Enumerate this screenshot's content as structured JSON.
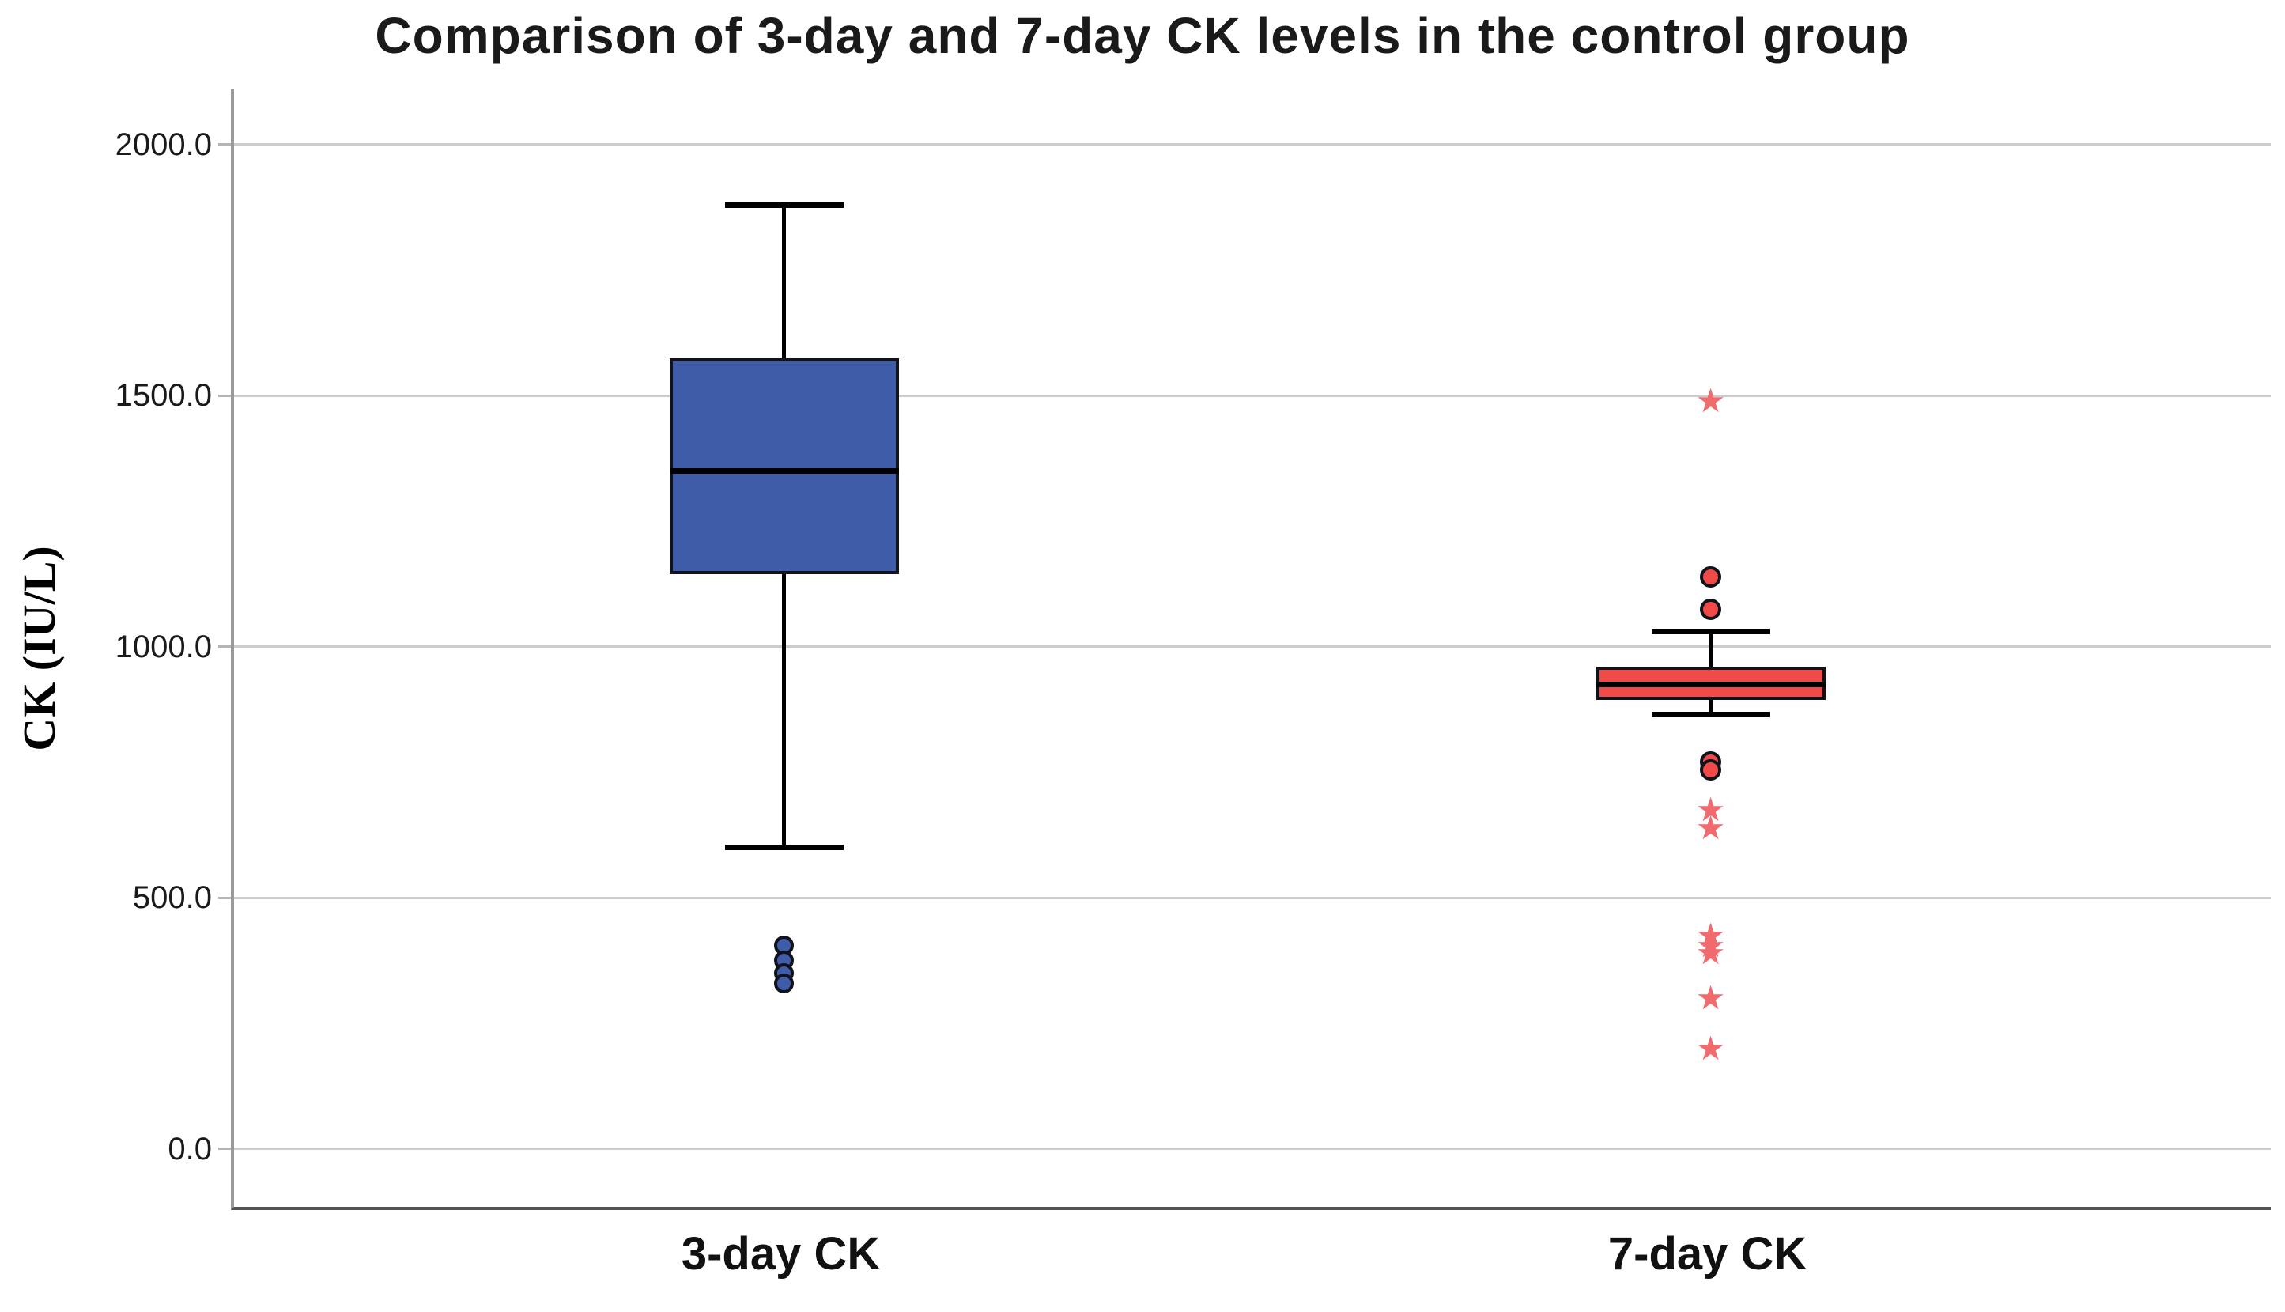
{
  "title": "Comparison of 3-day and 7-day CK levels in the control group",
  "colors": {
    "box_blue": "#3F5CA8",
    "box_red": "#EF4A47",
    "star_red": "#F16A6D",
    "outline_black": "#10131c",
    "gridline_gray": "#cccccc",
    "y_axis_gray": "#9a9a9a",
    "x_axis_dark": "#545454"
  },
  "chart_data": {
    "type": "boxplot",
    "title": "Comparison of 3-day and 7-day CK levels in the control group",
    "xlabel": "",
    "ylabel": "CK (IU/L)",
    "ylim": [
      -115,
      2110
    ],
    "yticks": [
      0,
      500,
      1000,
      1500,
      2000
    ],
    "ytick_labels": [
      "0.0",
      "500.0",
      "1000.0",
      "1500.0",
      "2000.0"
    ],
    "grid": "horizontal",
    "legend": "none",
    "categories": [
      "3-day CK",
      "7-day CK"
    ],
    "series": [
      {
        "name": "3-day CK",
        "box_color": "#3F5CA8",
        "whisker_low": 600,
        "q1": 1145,
        "median": 1350,
        "q3": 1575,
        "whisker_high": 1880,
        "outliers": {
          "circles": [
            405,
            375,
            350,
            330
          ],
          "stars": []
        }
      },
      {
        "name": "7-day CK",
        "box_color": "#EF4A47",
        "whisker_low": 865,
        "q1": 895,
        "median": 925,
        "q3": 960,
        "whisker_high": 1030,
        "outliers": {
          "circles": [
            1140,
            1075,
            770,
            755
          ],
          "stars": [
            1490,
            675,
            640,
            425,
            405,
            390,
            300,
            200
          ]
        }
      }
    ]
  }
}
